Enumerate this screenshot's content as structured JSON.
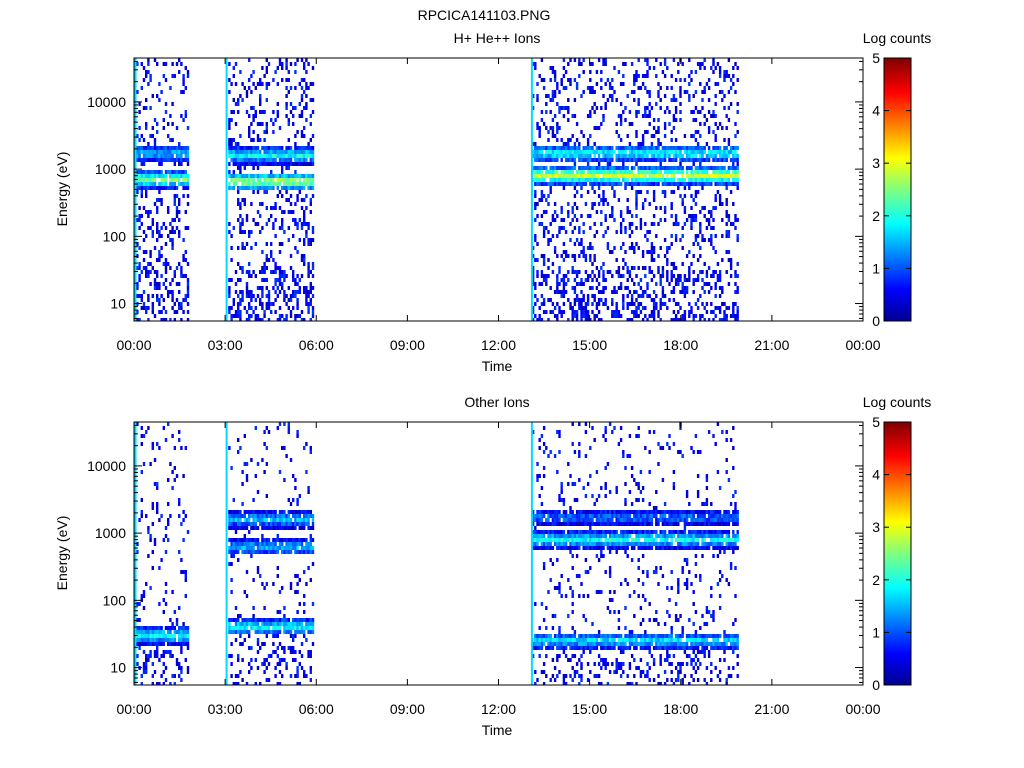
{
  "figure_title": "RPCICA141103.PNG",
  "colorbar": {
    "label": "Log counts",
    "ticks": [
      "0",
      "1",
      "2",
      "3",
      "4",
      "5"
    ],
    "range": [
      0,
      5
    ]
  },
  "chart_data": [
    {
      "type": "heatmap",
      "title": "H+ He++ Ions",
      "xlabel": "Time",
      "ylabel": "Energy (eV)",
      "xlim_hours": [
        0,
        24
      ],
      "xticks": [
        "00:00",
        "03:00",
        "06:00",
        "09:00",
        "12:00",
        "15:00",
        "18:00",
        "21:00",
        "00:00"
      ],
      "ylim": [
        5.5,
        45000
      ],
      "yscale": "log",
      "yticks": [
        "10",
        "100",
        "1000",
        "10000"
      ],
      "colorbar_label": "Log counts",
      "colorbar_ticks": [
        "0",
        "1",
        "2",
        "3",
        "4",
        "5"
      ],
      "observation_intervals_hours": [
        [
          0.0,
          1.75
        ],
        [
          3.1,
          5.9
        ],
        [
          13.1,
          19.85
        ]
      ],
      "spikes_hours": [
        0.05,
        3.05,
        13.1
      ],
      "bands": [
        {
          "interval": 0,
          "energy": 700,
          "level": 2.6
        },
        {
          "interval": 0,
          "energy": 1700,
          "level": 1.6
        },
        {
          "interval": 1,
          "energy": 650,
          "level": 2.9
        },
        {
          "interval": 1,
          "energy": 1600,
          "level": 2.0
        },
        {
          "interval": 2,
          "energy": 800,
          "level": 3.0
        },
        {
          "interval": 2,
          "energy": 1700,
          "level": 2.0
        }
      ]
    },
    {
      "type": "heatmap",
      "title": "Other Ions",
      "xlabel": "Time",
      "ylabel": "Energy (eV)",
      "xlim_hours": [
        0,
        24
      ],
      "xticks": [
        "00:00",
        "03:00",
        "06:00",
        "09:00",
        "12:00",
        "15:00",
        "18:00",
        "21:00",
        "00:00"
      ],
      "ylim": [
        5.5,
        45000
      ],
      "yscale": "log",
      "yticks": [
        "10",
        "100",
        "1000",
        "10000"
      ],
      "colorbar_label": "Log counts",
      "colorbar_ticks": [
        "0",
        "1",
        "2",
        "3",
        "4",
        "5"
      ],
      "observation_intervals_hours": [
        [
          0.0,
          1.75
        ],
        [
          3.1,
          5.9
        ],
        [
          13.1,
          19.85
        ]
      ],
      "spikes_hours": [
        0.05,
        3.05,
        13.1
      ],
      "bands": [
        {
          "interval": 0,
          "energy": 30,
          "level": 2.0
        },
        {
          "interval": 1,
          "energy": 1600,
          "level": 1.6
        },
        {
          "interval": 1,
          "energy": 620,
          "level": 1.6
        },
        {
          "interval": 1,
          "energy": 40,
          "level": 2.0
        },
        {
          "interval": 2,
          "energy": 800,
          "level": 2.0
        },
        {
          "interval": 2,
          "energy": 1700,
          "level": 1.2
        },
        {
          "interval": 2,
          "energy": 25,
          "level": 1.8
        }
      ]
    }
  ]
}
